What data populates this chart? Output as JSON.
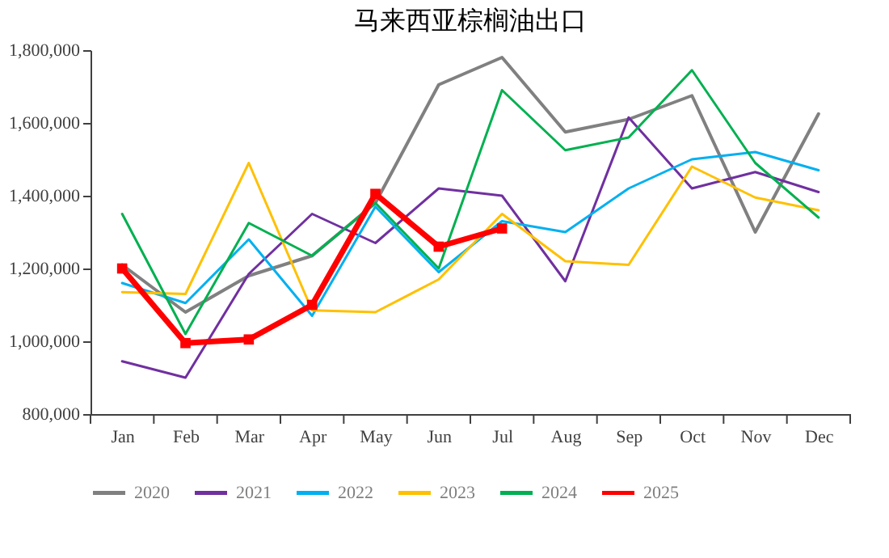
{
  "chart_data": {
    "type": "line",
    "title": "马来西亚棕榈油出口",
    "categories": [
      "Jan",
      "Feb",
      "Mar",
      "Apr",
      "May",
      "Jun",
      "Jul",
      "Aug",
      "Sep",
      "Oct",
      "Nov",
      "Dec"
    ],
    "ylim": [
      800000,
      1800000
    ],
    "yticks": [
      {
        "value": 800000,
        "label": "800,000"
      },
      {
        "value": 1000000,
        "label": "1,000,000"
      },
      {
        "value": 1200000,
        "label": "1,200,000"
      },
      {
        "value": 1400000,
        "label": "1,400,000"
      },
      {
        "value": 1600000,
        "label": "1,600,000"
      },
      {
        "value": 1800000,
        "label": "1,800,000"
      }
    ],
    "grid": false,
    "legend": "bottom",
    "series": [
      {
        "name": "2020",
        "color": "#808080",
        "marker": "none",
        "values": [
          1210000,
          1080000,
          1180000,
          1235000,
          1380000,
          1705000,
          1780000,
          1575000,
          1610000,
          1675000,
          1300000,
          1625000
        ]
      },
      {
        "name": "2021",
        "color": "#7030a0",
        "marker": "none",
        "values": [
          945000,
          900000,
          1185000,
          1350000,
          1270000,
          1420000,
          1400000,
          1165000,
          1615000,
          1420000,
          1465000,
          1410000
        ]
      },
      {
        "name": "2022",
        "color": "#00b0f0",
        "marker": "none",
        "values": [
          1160000,
          1105000,
          1280000,
          1070000,
          1370000,
          1190000,
          1330000,
          1300000,
          1420000,
          1500000,
          1520000,
          1470000
        ]
      },
      {
        "name": "2023",
        "color": "#ffc000",
        "marker": "none",
        "values": [
          1135000,
          1130000,
          1490000,
          1085000,
          1080000,
          1170000,
          1350000,
          1220000,
          1210000,
          1480000,
          1395000,
          1360000
        ]
      },
      {
        "name": "2024",
        "color": "#00b050",
        "marker": "none",
        "values": [
          1350000,
          1020000,
          1325000,
          1235000,
          1380000,
          1200000,
          1690000,
          1525000,
          1560000,
          1745000,
          1490000,
          1340000
        ]
      },
      {
        "name": "2025",
        "color": "#ff0000",
        "marker": "square",
        "values": [
          1200000,
          995000,
          1005000,
          1100000,
          1405000,
          1260000,
          1310000,
          null,
          null,
          null,
          null,
          null
        ]
      }
    ]
  }
}
